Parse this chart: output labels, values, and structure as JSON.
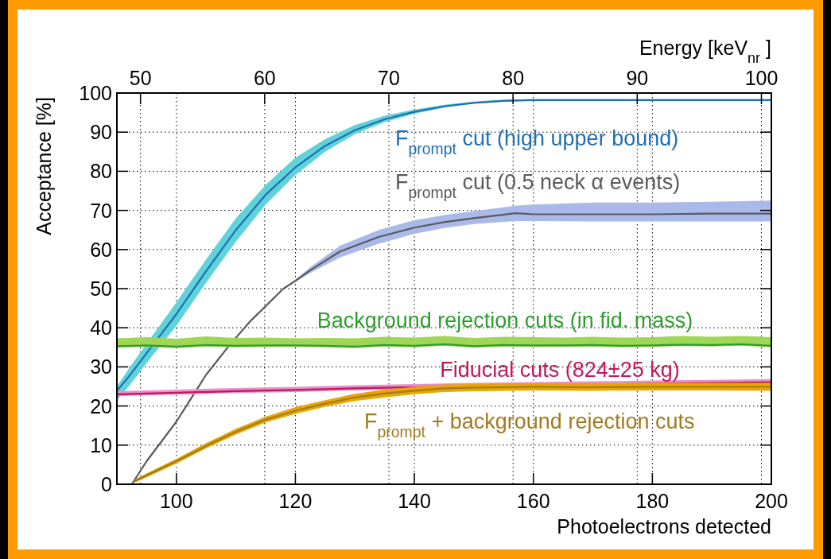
{
  "chart_data": {
    "type": "line",
    "xlabel": "Photoelectrons detected",
    "ylabel": "Acceptance [%]",
    "x2label": "Energy [keV$_{nr}$]",
    "xlim": [
      90,
      200
    ],
    "xticks": [
      100,
      120,
      140,
      160,
      180,
      200
    ],
    "x2lim": [
      48.1,
      100.8
    ],
    "x2ticks": [
      50,
      60,
      70,
      80,
      90,
      100
    ],
    "ylim": [
      0,
      100
    ],
    "yticks": [
      0,
      10,
      20,
      30,
      40,
      50,
      60,
      70,
      80,
      90,
      100
    ],
    "grid": true,
    "marker": "none",
    "line_style": "solid",
    "series": [
      {
        "name": "F$_{prompt}$ cut (high upper bound)",
        "color": "#1f6fb4",
        "x": [
          90,
          92,
          95,
          100,
          105,
          110,
          115,
          120,
          125,
          130,
          135,
          140,
          145,
          150,
          155,
          160,
          170,
          180,
          190,
          200
        ],
        "values": [
          23.9,
          27.5,
          33.5,
          43.5,
          54.5,
          65,
          74,
          81,
          86.5,
          90.5,
          93.3,
          95.2,
          96.6,
          97.5,
          98,
          98.2,
          98.2,
          98.2,
          98.2,
          98.2
        ],
        "lower": [
          21.5,
          25,
          31,
          40.5,
          51.5,
          62,
          71.5,
          79,
          85,
          89.5,
          92.6,
          94.7,
          96.3,
          97.3,
          97.8,
          98,
          98,
          98,
          98,
          98
        ],
        "upper": [
          25,
          29.5,
          36,
          46.5,
          57.5,
          68,
          76.5,
          83.5,
          88.2,
          91.8,
          94.2,
          95.8,
          97,
          97.8,
          98.3,
          98.4,
          98.4,
          98.4,
          98.4,
          98.4
        ]
      },
      {
        "name": "F$_{prompt}$ cut (0.5 neck α events)",
        "color": "#5a5a5a",
        "x": [
          90,
          92.5,
          95,
          100,
          105,
          109,
          112.5,
          118,
          120,
          122.5,
          127.5,
          134,
          140,
          145,
          150,
          157,
          160,
          170,
          180,
          190,
          200
        ],
        "values": [
          0,
          0,
          5.9,
          16,
          28,
          35.7,
          41.8,
          50,
          52,
          54.7,
          59.5,
          63.2,
          65.6,
          67,
          68,
          69.3,
          69,
          69,
          69,
          69.2,
          69.2
        ],
        "lower": [
          0,
          0,
          5.9,
          16,
          28,
          35.7,
          41.8,
          50,
          51.7,
          54,
          58,
          61.5,
          64,
          65.5,
          66.5,
          67.3,
          67.3,
          67.2,
          67.2,
          67.2,
          67.2
        ],
        "upper": [
          0,
          0,
          5.9,
          16,
          28,
          35.7,
          41.8,
          50,
          52.3,
          55.5,
          61,
          65,
          67.5,
          68.8,
          69.8,
          71.2,
          71.5,
          72,
          72,
          72.2,
          72.5
        ]
      },
      {
        "name": "Background rejection cuts (in fid. mass)",
        "color": "#2e9e2e",
        "x": [
          90,
          95,
          100,
          105,
          110,
          115,
          120,
          125,
          130,
          135,
          140,
          145,
          150,
          155,
          160,
          165,
          170,
          175,
          180,
          185,
          190,
          195,
          200
        ],
        "values": [
          35.3,
          35.5,
          35.2,
          35.6,
          35.4,
          35.5,
          35.5,
          35.4,
          35.2,
          35.6,
          35.4,
          35.8,
          35.3,
          35.6,
          35.5,
          35.5,
          35.6,
          35.4,
          35.5,
          35.7,
          35.6,
          35.8,
          35.4
        ],
        "lower": [
          34.9,
          35.1,
          34.8,
          35.2,
          35,
          35.1,
          35.1,
          35,
          34.8,
          35.2,
          35,
          35.4,
          34.9,
          35.2,
          35.1,
          35.1,
          35.2,
          35,
          35.1,
          35.3,
          35.2,
          35.4,
          35
        ],
        "upper": [
          37.3,
          37.6,
          37.2,
          37.8,
          37.4,
          37.5,
          37.3,
          37.4,
          37.3,
          37.7,
          37.5,
          37.9,
          37.4,
          37.7,
          37.6,
          37.5,
          37.7,
          37.5,
          37.6,
          37.9,
          37.7,
          37.9,
          37.6
        ]
      },
      {
        "name": "Fiducial cuts (824±25 kg)",
        "color": "#c0185a",
        "x": [
          90,
          100,
          110,
          120,
          130,
          140,
          150,
          160,
          170,
          180,
          190,
          200
        ],
        "values": [
          23,
          23.4,
          23.8,
          24.1,
          24.5,
          24.8,
          25.1,
          25.3,
          25.5,
          25.7,
          25.9,
          26.1
        ],
        "lower": [
          22.5,
          22.9,
          23.3,
          23.6,
          24,
          24.3,
          24.6,
          24.8,
          25,
          25.2,
          25.4,
          25.6
        ],
        "upper": [
          23.8,
          24.2,
          24.6,
          24.9,
          25.3,
          25.6,
          25.9,
          26.1,
          26.3,
          26.5,
          26.7,
          26.9
        ]
      },
      {
        "name": "F$_{prompt}$ + background rejection cuts",
        "color": "#a37a1c",
        "x": [
          93,
          95,
          100,
          105,
          110,
          115,
          120,
          125,
          130,
          135,
          140,
          145,
          150,
          160,
          170,
          180,
          190,
          200
        ],
        "values": [
          0.8,
          2.3,
          5.9,
          9.8,
          13.4,
          16.5,
          18.8,
          20.6,
          22.2,
          23.2,
          23.9,
          24.5,
          24.7,
          24.9,
          24.8,
          24.9,
          24.9,
          24.9
        ],
        "lower": [
          0.4,
          1.8,
          5.3,
          9.2,
          12.7,
          15.8,
          18,
          19.8,
          21.3,
          22.2,
          23,
          23.6,
          23.8,
          24,
          23.9,
          24,
          24,
          23.9
        ],
        "upper": [
          1.2,
          2.8,
          6.5,
          10.5,
          14.2,
          17.3,
          19.7,
          21.5,
          23.1,
          24.2,
          24.9,
          25.5,
          25.6,
          25.8,
          25.8,
          25.9,
          25.9,
          25.9
        ]
      }
    ]
  }
}
